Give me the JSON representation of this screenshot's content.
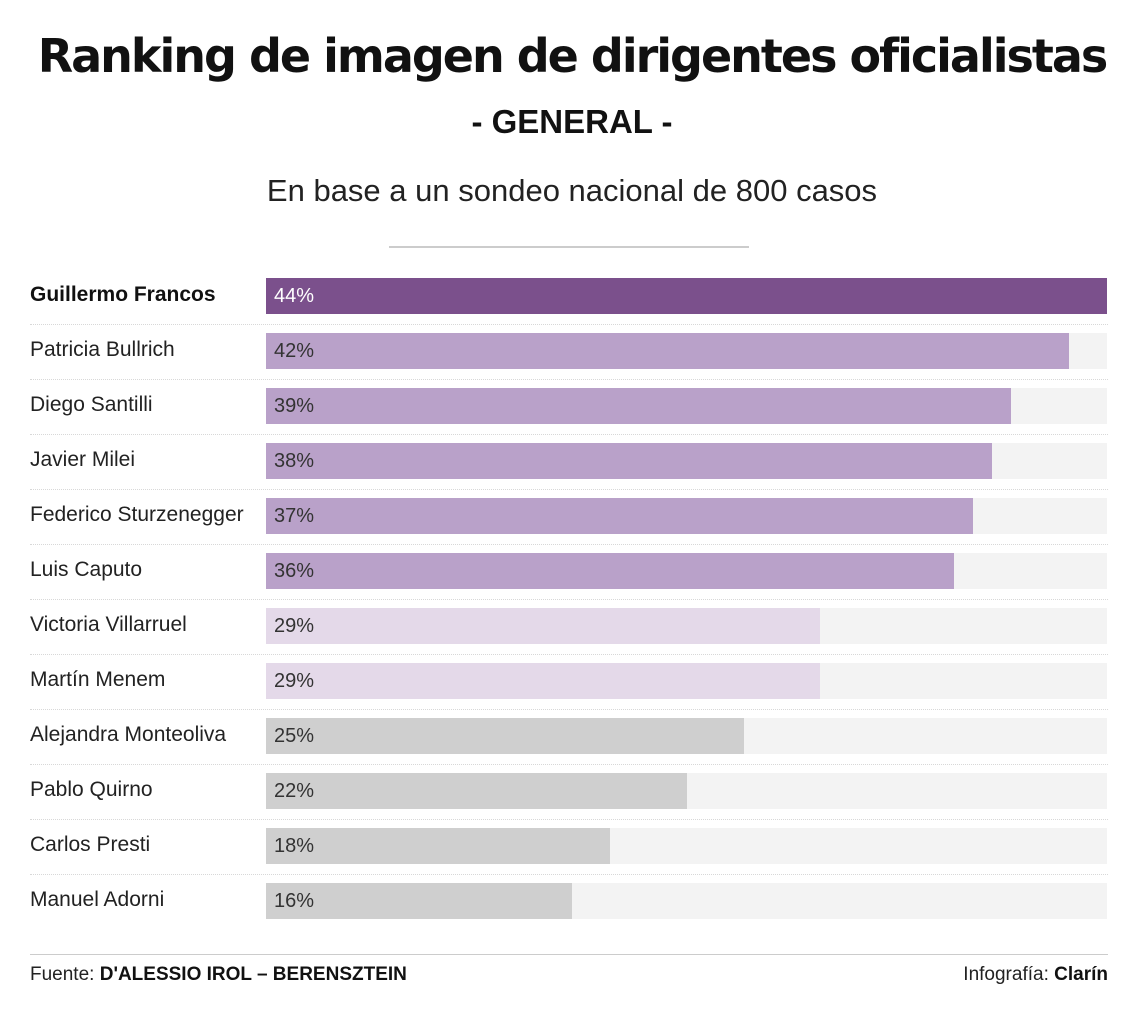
{
  "header": {
    "title": "Ranking de imagen de dirigentes oficialistas",
    "subtitle": "- GENERAL -",
    "description": "En base a un sondeo nacional de 800 casos"
  },
  "footer": {
    "source_label": "Fuente: ",
    "source_value": "D'ALESSIO IROL – BERENSZTEIN",
    "credit_label": "Infografía: ",
    "credit_value": "Clarín"
  },
  "colors": {
    "highlight": "#7b508c",
    "tier_high": "#b9a1c9",
    "tier_mid": "#e4d9e9",
    "tier_low": "#cfcfcf",
    "track": "#f3f3f3"
  },
  "chart_data": {
    "type": "bar",
    "orientation": "horizontal",
    "title": "Ranking de imagen de dirigentes oficialistas",
    "subtitle": "- GENERAL -",
    "xlim": [
      0,
      44
    ],
    "categories": [
      "Guillermo Francos",
      "Patricia Bullrich",
      "Diego Santilli",
      "Javier Milei",
      "Federico Sturzenegger",
      "Luis Caputo",
      "Victoria Villarruel",
      "Martín Menem",
      "Alejandra Monteoliva",
      "Pablo Quirno",
      "Carlos Presti",
      "Manuel Adorni"
    ],
    "values": [
      44,
      42,
      39,
      38,
      37,
      36,
      29,
      29,
      25,
      22,
      18,
      16
    ],
    "value_labels": [
      "44%",
      "42%",
      "39%",
      "38%",
      "37%",
      "36%",
      "29%",
      "29%",
      "25%",
      "22%",
      "18%",
      "16%"
    ],
    "tiers": [
      "highlight",
      "high",
      "high",
      "high",
      "high",
      "high",
      "mid",
      "mid",
      "low",
      "low",
      "low",
      "low"
    ]
  }
}
